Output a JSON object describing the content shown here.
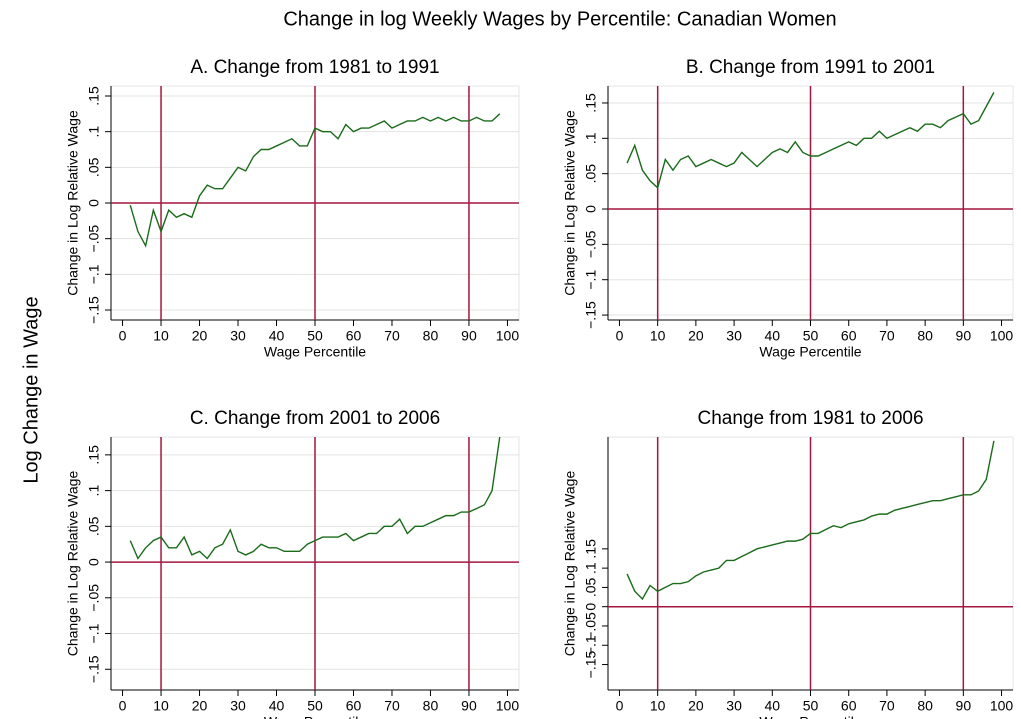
{
  "title": "Change in log Weekly Wages by Percentile: Canadian Women",
  "ylabel": "Log Change in Wage",
  "chart_data": [
    {
      "type": "line",
      "title": "A. Change from 1981 to 1991",
      "xlabel": "Wage Percentile",
      "ylabel": "Change in Log Relative Wage",
      "x": [
        2,
        4,
        6,
        8,
        10,
        12,
        14,
        16,
        18,
        20,
        22,
        24,
        26,
        28,
        30,
        32,
        34,
        36,
        38,
        40,
        42,
        44,
        46,
        48,
        50,
        52,
        54,
        56,
        58,
        60,
        62,
        64,
        66,
        68,
        70,
        72,
        74,
        76,
        78,
        80,
        82,
        84,
        86,
        88,
        90,
        92,
        94,
        96,
        98
      ],
      "values": [
        -0.003,
        -0.04,
        -0.06,
        -0.01,
        -0.04,
        -0.01,
        -0.02,
        -0.015,
        -0.02,
        0.01,
        0.025,
        0.02,
        0.02,
        0.035,
        0.05,
        0.045,
        0.065,
        0.075,
        0.075,
        0.08,
        0.085,
        0.09,
        0.08,
        0.08,
        0.105,
        0.1,
        0.1,
        0.09,
        0.11,
        0.1,
        0.105,
        0.105,
        0.11,
        0.115,
        0.105,
        0.11,
        0.115,
        0.115,
        0.12,
        0.115,
        0.12,
        0.115,
        0.12,
        0.115,
        0.115,
        0.12,
        0.115,
        0.115,
        0.125
      ],
      "color": "#1a6b1a",
      "ref_color": "#a3173f",
      "xlines": [
        10,
        50,
        90
      ],
      "ylines": [
        0
      ],
      "grid": true,
      "xlim": [
        -3,
        103
      ],
      "ylim": [
        -0.164,
        0.164
      ],
      "xticks": [
        0,
        10,
        20,
        30,
        40,
        50,
        60,
        70,
        80,
        90,
        100
      ],
      "yticks": [
        {
          "value": -0.15,
          "label": "−.15"
        },
        {
          "value": -0.1,
          "label": "−.1"
        },
        {
          "value": -0.05,
          "label": "−.05"
        },
        0,
        {
          "value": 0.05,
          "label": ".05"
        },
        {
          "value": 0.1,
          "label": ".1"
        },
        {
          "value": 0.15,
          "label": ".15"
        }
      ]
    },
    {
      "type": "line",
      "title": "B. Change from 1991 to 2001",
      "xlabel": "Wage Percentile",
      "ylabel": "Change in Log Relative Wage",
      "x": [
        2,
        4,
        6,
        8,
        10,
        12,
        14,
        16,
        18,
        20,
        22,
        24,
        26,
        28,
        30,
        32,
        34,
        36,
        38,
        40,
        42,
        44,
        46,
        48,
        50,
        52,
        54,
        56,
        58,
        60,
        62,
        64,
        66,
        68,
        70,
        72,
        74,
        76,
        78,
        80,
        82,
        84,
        86,
        88,
        90,
        92,
        94,
        96,
        98
      ],
      "values": [
        0.065,
        0.09,
        0.055,
        0.04,
        0.03,
        0.07,
        0.055,
        0.07,
        0.075,
        0.06,
        0.065,
        0.07,
        0.065,
        0.06,
        0.065,
        0.08,
        0.07,
        0.06,
        0.07,
        0.08,
        0.085,
        0.08,
        0.095,
        0.08,
        0.075,
        0.075,
        0.08,
        0.085,
        0.09,
        0.095,
        0.09,
        0.1,
        0.1,
        0.11,
        0.1,
        0.105,
        0.11,
        0.115,
        0.11,
        0.12,
        0.12,
        0.115,
        0.125,
        0.13,
        0.135,
        0.12,
        0.125,
        0.145,
        0.165
      ],
      "color": "#1a6b1a",
      "ref_color": "#a3173f",
      "xlines": [
        10,
        50,
        90
      ],
      "ylines": [
        0
      ],
      "grid": true,
      "xlim": [
        -3,
        103
      ],
      "ylim": [
        -0.157,
        0.174
      ],
      "xticks": [
        0,
        10,
        20,
        30,
        40,
        50,
        60,
        70,
        80,
        90,
        100
      ],
      "yticks": [
        {
          "value": -0.15,
          "label": "−.15"
        },
        {
          "value": -0.1,
          "label": "−.1"
        },
        {
          "value": -0.05,
          "label": "−.05"
        },
        0,
        {
          "value": 0.05,
          "label": ".05"
        },
        {
          "value": 0.1,
          "label": ".1"
        },
        {
          "value": 0.15,
          "label": ".15"
        }
      ]
    },
    {
      "type": "line",
      "title": "C. Change from 2001 to 2006",
      "xlabel": "Wage Percentile",
      "ylabel": "Change in Log Relative Wage",
      "x": [
        2,
        4,
        6,
        8,
        10,
        12,
        14,
        16,
        18,
        20,
        22,
        24,
        26,
        28,
        30,
        32,
        34,
        36,
        38,
        40,
        42,
        44,
        46,
        48,
        50,
        52,
        54,
        56,
        58,
        60,
        62,
        64,
        66,
        68,
        70,
        72,
        74,
        76,
        78,
        80,
        82,
        84,
        86,
        88,
        90,
        92,
        94,
        96,
        98
      ],
      "values": [
        0.03,
        0.005,
        0.02,
        0.03,
        0.035,
        0.02,
        0.02,
        0.035,
        0.01,
        0.015,
        0.005,
        0.02,
        0.025,
        0.045,
        0.015,
        0.01,
        0.015,
        0.025,
        0.02,
        0.02,
        0.015,
        0.015,
        0.015,
        0.025,
        0.03,
        0.035,
        0.035,
        0.035,
        0.04,
        0.03,
        0.035,
        0.04,
        0.04,
        0.05,
        0.05,
        0.06,
        0.04,
        0.05,
        0.05,
        0.055,
        0.06,
        0.065,
        0.065,
        0.07,
        0.07,
        0.075,
        0.08,
        0.1,
        0.175
      ],
      "color": "#1a6b1a",
      "ref_color": "#a3173f",
      "xlines": [
        10,
        50,
        90
      ],
      "ylines": [
        0
      ],
      "grid": true,
      "xlim": [
        -3,
        103
      ],
      "ylim": [
        -0.179,
        0.175
      ],
      "xticks": [
        0,
        10,
        20,
        30,
        40,
        50,
        60,
        70,
        80,
        90,
        100
      ],
      "yticks": [
        {
          "value": -0.15,
          "label": "−.15"
        },
        {
          "value": -0.1,
          "label": "−.1"
        },
        {
          "value": -0.05,
          "label": "−.05"
        },
        0,
        {
          "value": 0.05,
          "label": ".05"
        },
        {
          "value": 0.1,
          "label": ".1"
        },
        {
          "value": 0.15,
          "label": ".15"
        }
      ]
    },
    {
      "type": "line",
      "title": "Change from 1981 to 2006",
      "xlabel": "Wage Percentile",
      "ylabel": "Change in Log Relative Wage",
      "x": [
        2,
        4,
        6,
        8,
        10,
        12,
        14,
        16,
        18,
        20,
        22,
        24,
        26,
        28,
        30,
        32,
        34,
        36,
        38,
        40,
        42,
        44,
        46,
        48,
        50,
        52,
        54,
        56,
        58,
        60,
        62,
        64,
        66,
        68,
        70,
        72,
        74,
        76,
        78,
        80,
        82,
        84,
        86,
        88,
        90,
        92,
        94,
        96,
        98
      ],
      "values": [
        0.085,
        0.04,
        0.02,
        0.055,
        0.04,
        0.05,
        0.06,
        0.06,
        0.065,
        0.08,
        0.09,
        0.095,
        0.1,
        0.12,
        0.12,
        0.13,
        0.14,
        0.15,
        0.155,
        0.16,
        0.165,
        0.17,
        0.17,
        0.175,
        0.19,
        0.19,
        0.2,
        0.21,
        0.205,
        0.215,
        0.22,
        0.225,
        0.235,
        0.24,
        0.24,
        0.25,
        0.255,
        0.26,
        0.265,
        0.27,
        0.275,
        0.275,
        0.28,
        0.285,
        0.29,
        0.29,
        0.3,
        0.33,
        0.43
      ],
      "color": "#1a6b1a",
      "ref_color": "#a3173f",
      "xlines": [
        10,
        50,
        90
      ],
      "ylines": [
        0
      ],
      "grid": false,
      "xlim": [
        -3,
        103
      ],
      "ylim": [
        -0.216,
        0.44
      ],
      "xticks": [
        0,
        10,
        20,
        30,
        40,
        50,
        60,
        70,
        80,
        90,
        100
      ],
      "yticks": [
        {
          "value": -0.15,
          "label": "−.15"
        },
        {
          "value": -0.1,
          "label": "−.1"
        },
        {
          "value": -0.05,
          "label": "−.05"
        },
        0,
        {
          "value": 0.05,
          "label": ".05"
        },
        {
          "value": 0.1,
          "label": ".1"
        },
        {
          "value": 0.15,
          "label": ".15"
        }
      ]
    }
  ]
}
